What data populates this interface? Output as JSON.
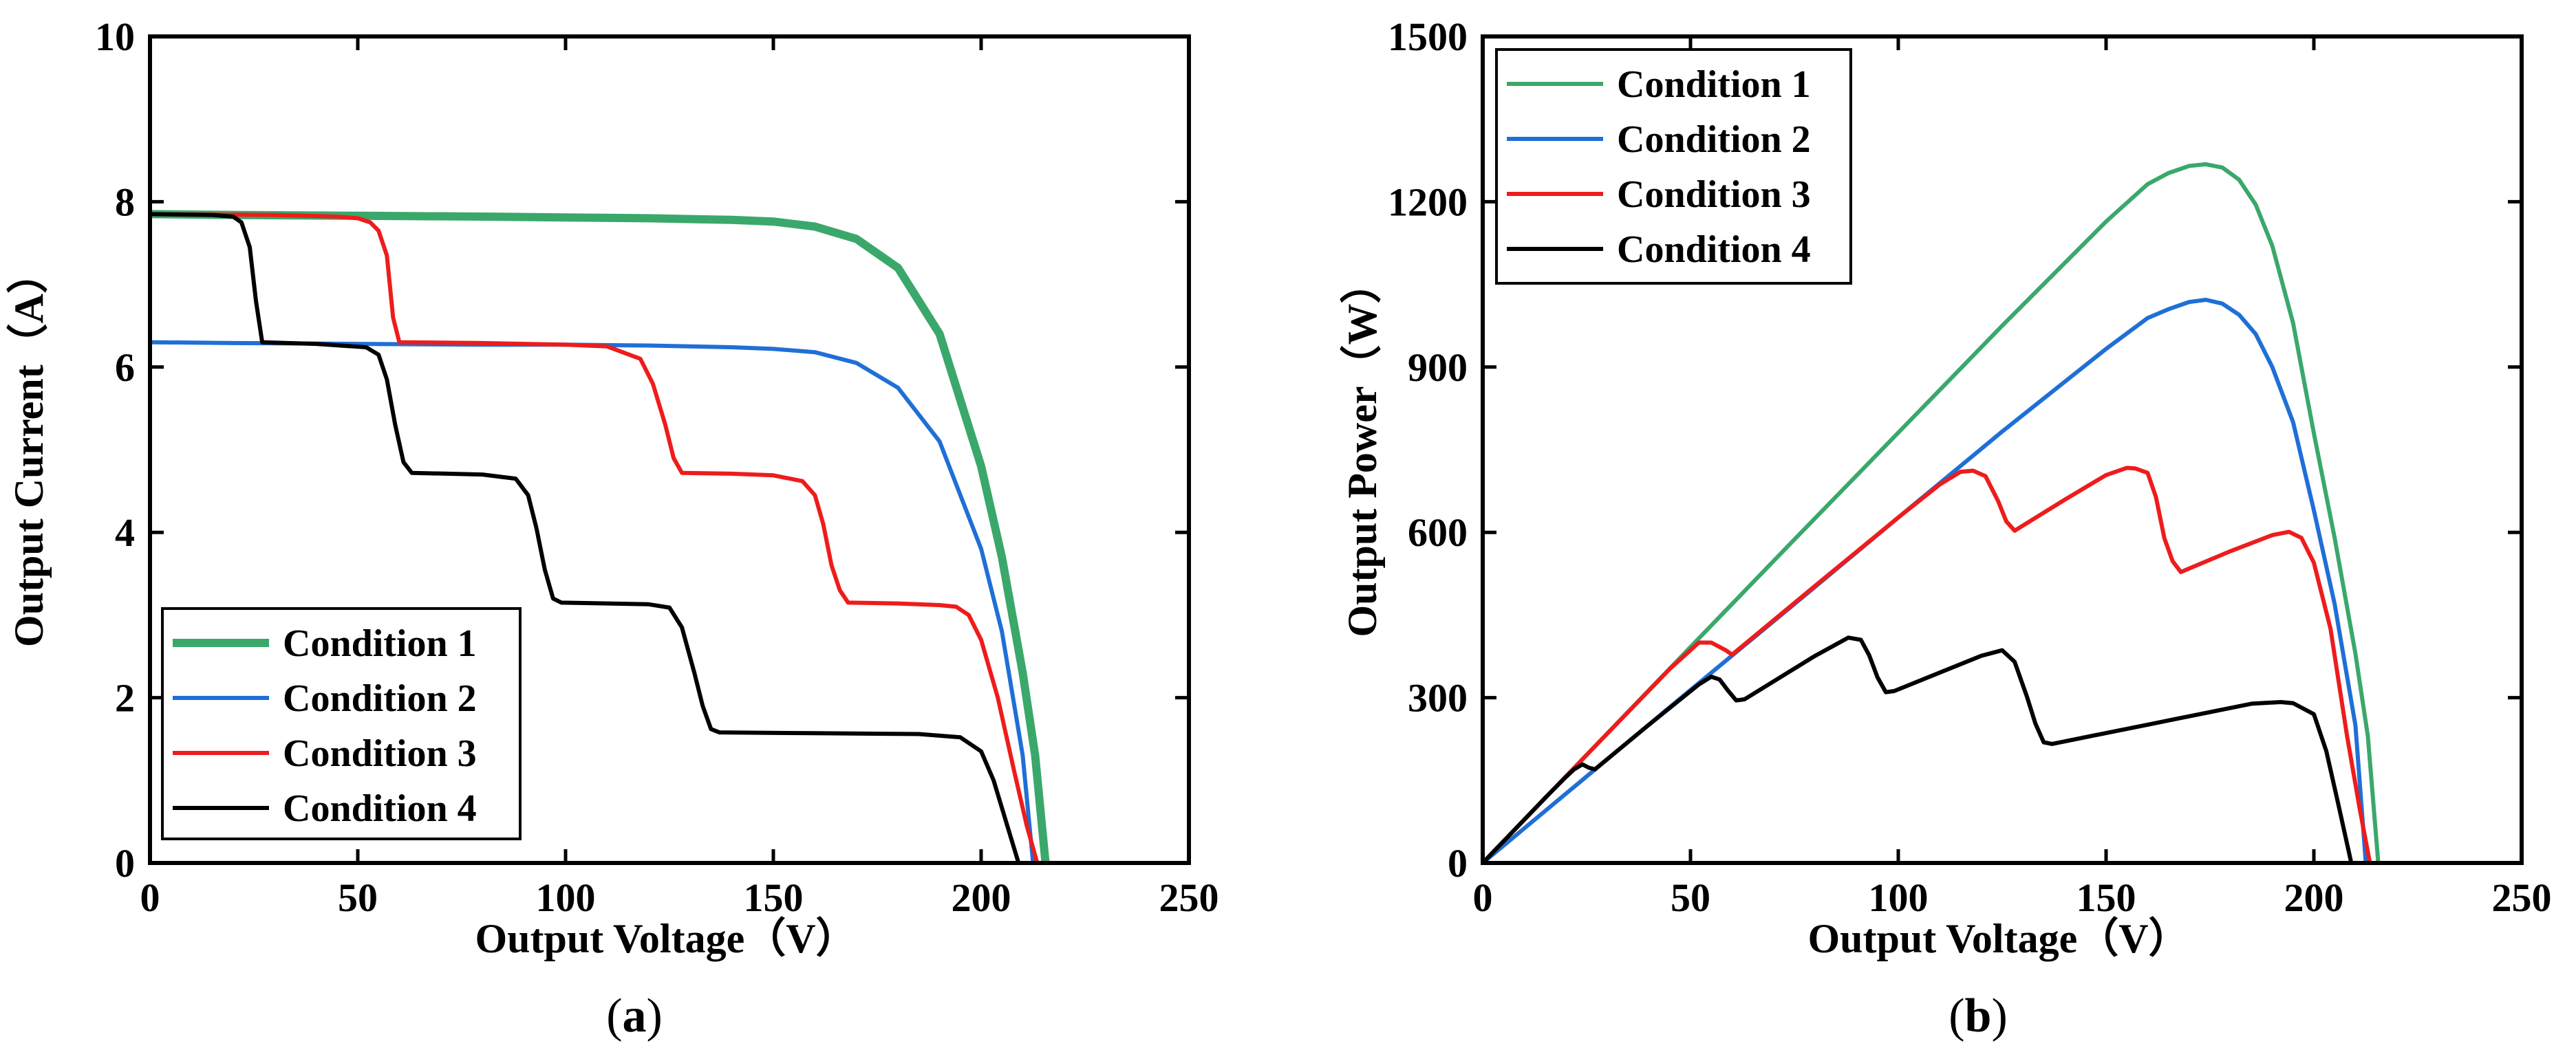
{
  "chart_data": [
    {
      "type": "line",
      "panel_label": "a",
      "xlabel": "Output Voltage（V）",
      "ylabel": "Output Current（A）",
      "xlim": [
        0,
        250
      ],
      "ylim": [
        0,
        10
      ],
      "xticks": [
        "0",
        "50",
        "100",
        "150",
        "200",
        "250"
      ],
      "yticks": [
        "0",
        "2",
        "4",
        "6",
        "8",
        "10"
      ],
      "legend_position": "bottom-left",
      "series": [
        {
          "name": "Condition 1",
          "color": "#3aa86b",
          "x": [
            0,
            20,
            50,
            80,
            100,
            120,
            140,
            150,
            160,
            170,
            180,
            190,
            200,
            205,
            210,
            213,
            215.5
          ],
          "y": [
            7.85,
            7.84,
            7.83,
            7.82,
            7.81,
            7.8,
            7.78,
            7.76,
            7.7,
            7.55,
            7.2,
            6.4,
            4.8,
            3.7,
            2.3,
            1.3,
            0
          ]
        },
        {
          "name": "Condition 2",
          "color": "#1f6fd6",
          "x": [
            0,
            20,
            50,
            80,
            100,
            120,
            140,
            150,
            160,
            170,
            180,
            190,
            200,
            205,
            210,
            212.5
          ],
          "y": [
            6.3,
            6.29,
            6.28,
            6.27,
            6.27,
            6.26,
            6.24,
            6.22,
            6.18,
            6.05,
            5.75,
            5.1,
            3.8,
            2.8,
            1.3,
            0
          ]
        },
        {
          "name": "Condition 3",
          "color": "#ee1c1c",
          "x": [
            0,
            30,
            45,
            50,
            53,
            55,
            57,
            58.5,
            60,
            80,
            100,
            110,
            118,
            121,
            124,
            126,
            128,
            140,
            150,
            157,
            160,
            162,
            164,
            166,
            168,
            180,
            190,
            194,
            197,
            200,
            204,
            208,
            211,
            213.5
          ],
          "y": [
            7.85,
            7.84,
            7.82,
            7.8,
            7.75,
            7.65,
            7.35,
            6.6,
            6.3,
            6.29,
            6.27,
            6.25,
            6.1,
            5.8,
            5.3,
            4.9,
            4.72,
            4.71,
            4.69,
            4.62,
            4.45,
            4.1,
            3.6,
            3.3,
            3.15,
            3.14,
            3.12,
            3.1,
            3.0,
            2.7,
            2.0,
            1.1,
            0.45,
            0
          ]
        },
        {
          "name": "Condition 4",
          "color": "#000000",
          "x": [
            0,
            15,
            20,
            22,
            24,
            25.5,
            27,
            40,
            52,
            55,
            57,
            59,
            61,
            63,
            80,
            88,
            91,
            93,
            95,
            97,
            99,
            120,
            125,
            128,
            131,
            133,
            135,
            137,
            160,
            185,
            195,
            200,
            203,
            206,
            209
          ],
          "y": [
            7.85,
            7.84,
            7.82,
            7.75,
            7.45,
            6.8,
            6.3,
            6.28,
            6.24,
            6.15,
            5.85,
            5.3,
            4.85,
            4.72,
            4.7,
            4.65,
            4.45,
            4.05,
            3.55,
            3.2,
            3.15,
            3.13,
            3.09,
            2.85,
            2.3,
            1.9,
            1.62,
            1.58,
            1.57,
            1.56,
            1.52,
            1.35,
            1.0,
            0.5,
            0
          ]
        }
      ]
    },
    {
      "type": "line",
      "panel_label": "b",
      "xlabel": "Output Voltage（V）",
      "ylabel": "Output Power（W）",
      "xlim": [
        0,
        250
      ],
      "ylim": [
        0,
        1500
      ],
      "xticks": [
        "0",
        "50",
        "100",
        "150",
        "200",
        "250"
      ],
      "yticks": [
        "0",
        "300",
        "600",
        "900",
        "1200",
        "1500"
      ],
      "legend_position": "top-left",
      "series": [
        {
          "name": "Condition 1",
          "color": "#3aa86b",
          "x": [
            0,
            25,
            50,
            75,
            100,
            125,
            150,
            160,
            165,
            170,
            174,
            178,
            182,
            186,
            190,
            195,
            200,
            205,
            210,
            213,
            215.5
          ],
          "y": [
            0,
            196,
            392,
            587,
            781,
            975,
            1164,
            1232,
            1252,
            1265,
            1268,
            1262,
            1240,
            1195,
            1120,
            980,
            780,
            590,
            380,
            230,
            0
          ]
        },
        {
          "name": "Condition 2",
          "color": "#1f6fd6",
          "x": [
            0,
            25,
            50,
            75,
            100,
            125,
            150,
            160,
            165,
            170,
            174,
            178,
            182,
            186,
            190,
            195,
            200,
            205,
            210,
            212.5
          ],
          "y": [
            0,
            157,
            314,
            470,
            627,
            783,
            933,
            989,
            1005,
            1018,
            1022,
            1015,
            995,
            960,
            900,
            800,
            640,
            470,
            250,
            0
          ]
        },
        {
          "name": "Condition 3",
          "color": "#ee1c1c",
          "x": [
            0,
            25,
            45,
            52,
            55,
            57,
            58.5,
            60,
            80,
            100,
            110,
            115,
            118,
            121,
            124,
            126,
            128,
            140,
            150,
            155,
            157,
            160,
            162,
            164,
            166,
            168,
            180,
            190,
            194,
            197,
            200,
            204,
            208,
            211,
            213.5
          ],
          "y": [
            0,
            196,
            352,
            400,
            400,
            392,
            386,
            378,
            503,
            627,
            687,
            710,
            712,
            702,
            657,
            620,
            603,
            659,
            704,
            717,
            716,
            708,
            664,
            590,
            548,
            528,
            566,
            595,
            601,
            590,
            545,
            425,
            230,
            100,
            0
          ]
        },
        {
          "name": "Condition 4",
          "color": "#000000",
          "x": [
            0,
            15,
            20,
            22,
            24,
            25.5,
            27,
            40,
            52,
            55,
            57,
            59,
            61,
            63,
            80,
            88,
            91,
            93,
            95,
            97,
            99,
            120,
            125,
            128,
            131,
            133,
            135,
            137,
            160,
            185,
            192,
            195,
            200,
            203,
            206,
            209
          ],
          "y": [
            0,
            118,
            156,
            170,
            179,
            173,
            170,
            251,
            324,
            338,
            333,
            313,
            295,
            297,
            376,
            409,
            405,
            377,
            337,
            310,
            312,
            376,
            386,
            365,
            301,
            253,
            219,
            216,
            251,
            289,
            292,
            290,
            270,
            203,
            103,
            0
          ]
        }
      ]
    }
  ]
}
